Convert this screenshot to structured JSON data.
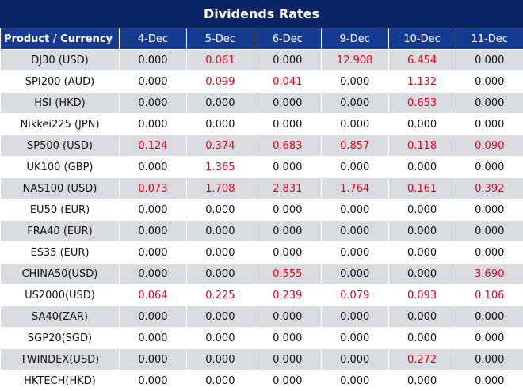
{
  "title": "Dividends Rates",
  "table": {
    "header": [
      "Product / Currency",
      "4-Dec",
      "5-Dec",
      "6-Dec",
      "9-Dec",
      "10-Dec",
      "11-Dec"
    ],
    "rows": [
      [
        "DJ30 (USD)",
        "0.000",
        "0.061",
        "0.000",
        "12.908",
        "6.454",
        "0.000"
      ],
      [
        "SPI200 (AUD)",
        "0.000",
        "0.099",
        "0.041",
        "0.000",
        "1.132",
        "0.000"
      ],
      [
        "HSI (HKD)",
        "0.000",
        "0.000",
        "0.000",
        "0.000",
        "0.653",
        "0.000"
      ],
      [
        "Nikkei225 (JPN)",
        "0.000",
        "0.000",
        "0.000",
        "0.000",
        "0.000",
        "0.000"
      ],
      [
        "SP500 (USD)",
        "0.124",
        "0.374",
        "0.683",
        "0.857",
        "0.118",
        "0.090"
      ],
      [
        "UK100 (GBP)",
        "0.000",
        "1.365",
        "0.000",
        "0.000",
        "0.000",
        "0.000"
      ],
      [
        "NAS100 (USD)",
        "0.073",
        "1.708",
        "2.831",
        "1.764",
        "0.161",
        "0.392"
      ],
      [
        "EU50 (EUR)",
        "0.000",
        "0.000",
        "0.000",
        "0.000",
        "0.000",
        "0.000"
      ],
      [
        "FRA40 (EUR)",
        "0.000",
        "0.000",
        "0.000",
        "0.000",
        "0.000",
        "0.000"
      ],
      [
        "ES35 (EUR)",
        "0.000",
        "0.000",
        "0.000",
        "0.000",
        "0.000",
        "0.000"
      ],
      [
        "CHINA50(USD)",
        "0.000",
        "0.000",
        "0.555",
        "0.000",
        "0.000",
        "3.690"
      ],
      [
        "US2000(USD)",
        "0.064",
        "0.225",
        "0.239",
        "0.079",
        "0.093",
        "0.106"
      ],
      [
        "SA40(ZAR)",
        "0.000",
        "0.000",
        "0.000",
        "0.000",
        "0.000",
        "0.000"
      ],
      [
        "SGP20(SGD)",
        "0.000",
        "0.000",
        "0.000",
        "0.000",
        "0.000",
        "0.000"
      ],
      [
        "TWINDEX(USD)",
        "0.000",
        "0.000",
        "0.000",
        "0.000",
        "0.272",
        "0.000"
      ],
      [
        "HKTECH(HKD)",
        "0.000",
        "0.000",
        "0.000",
        "0.000",
        "0.000",
        "0.000"
      ]
    ]
  }
}
